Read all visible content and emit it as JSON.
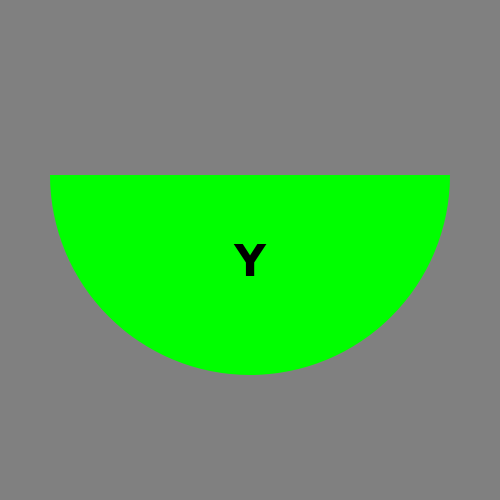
{
  "canvas": {
    "background_color": "#808080"
  },
  "shape": {
    "kind": "half-disc",
    "orientation": "flat-edge-top",
    "fill_color": "#00ff00",
    "label": "Y",
    "label_color": "#000000"
  }
}
